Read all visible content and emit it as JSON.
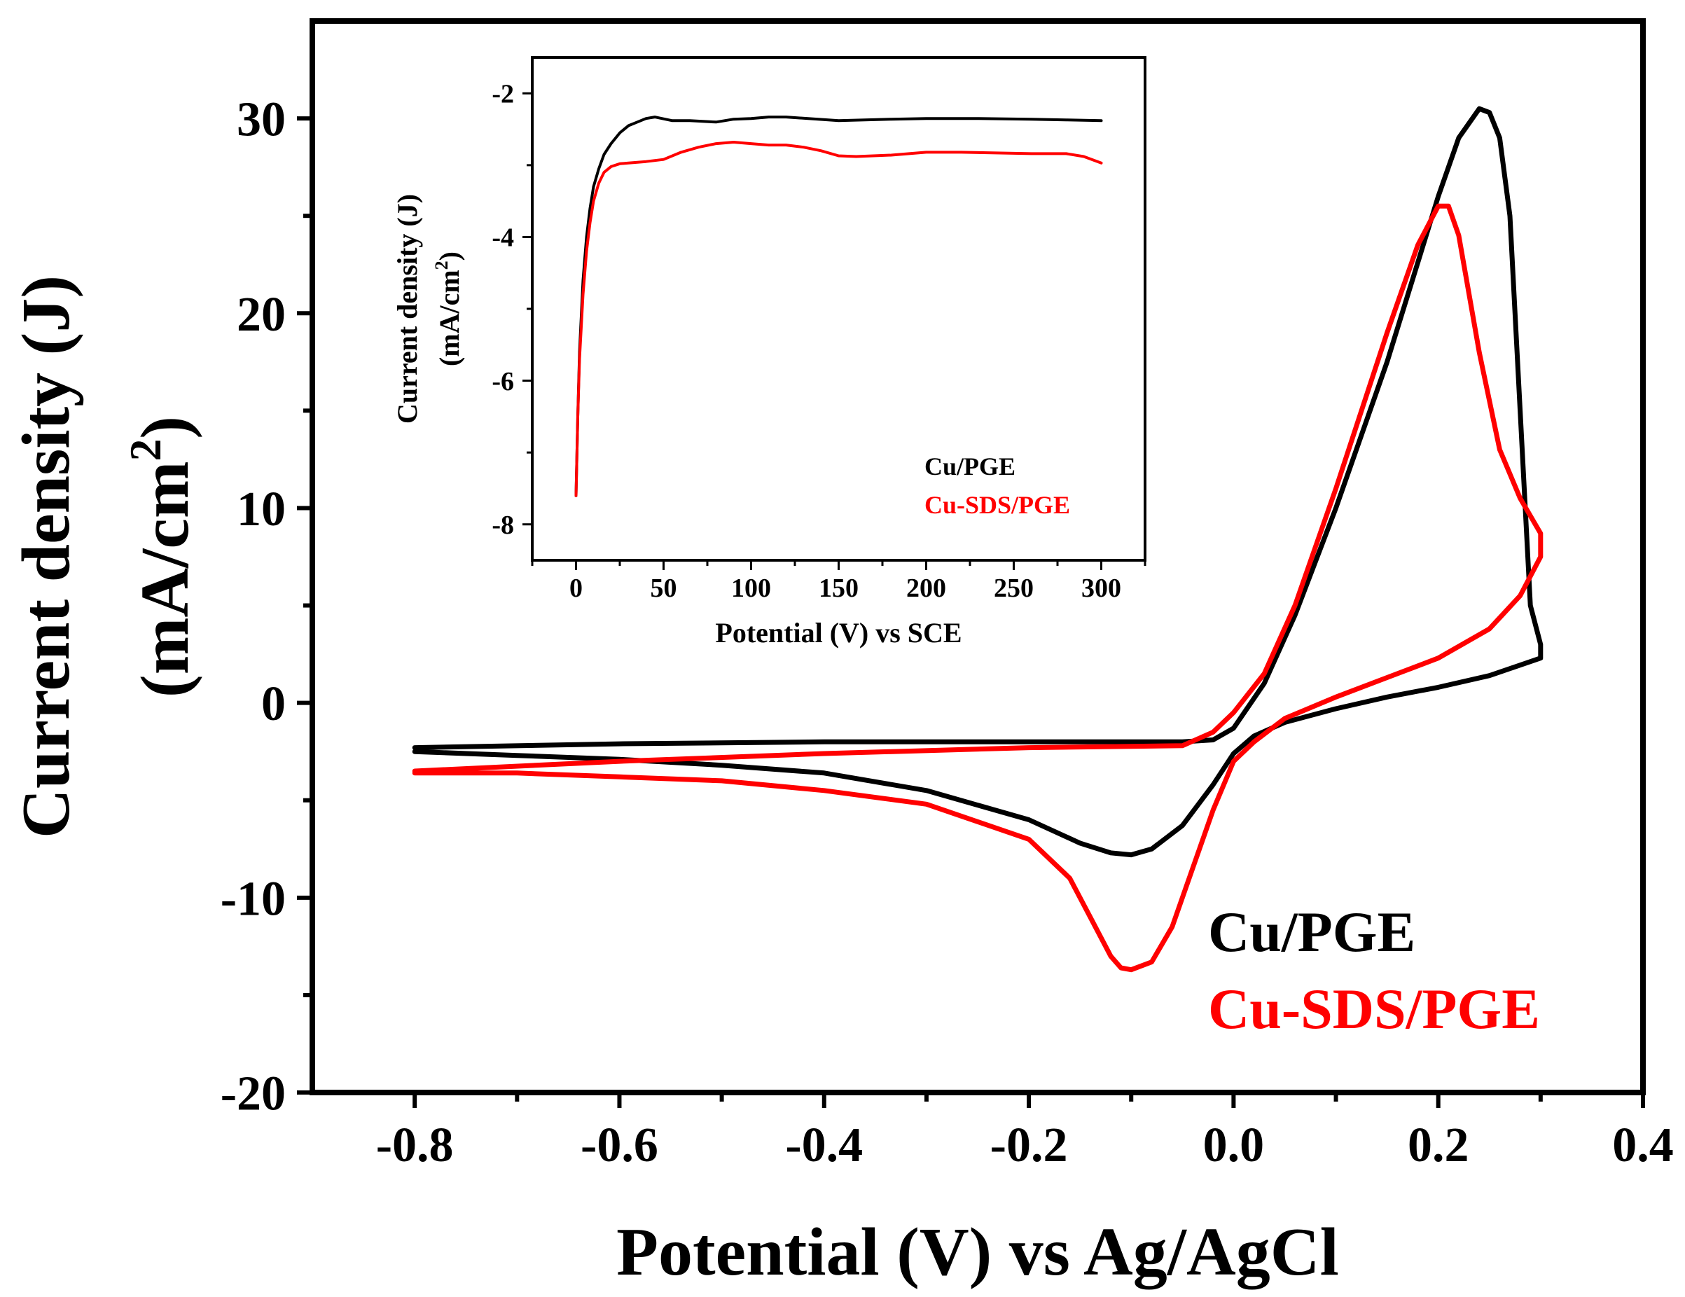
{
  "chart_data": [
    {
      "id": "main",
      "type": "line",
      "title": "",
      "xlabel": "Potential (V) vs Ag/AgCl",
      "ylabel": "Current density (J)",
      "ylabel_unit": "(mA/cm",
      "ylabel_sup": "2",
      "ylabel_close": ")",
      "xlim": [
        -0.9,
        0.4
      ],
      "ylim": [
        -20,
        35
      ],
      "xticks": [
        -0.8,
        -0.6,
        -0.4,
        -0.2,
        0.0,
        0.2,
        0.4
      ],
      "xtick_labels": [
        "-0.8",
        "-0.6",
        "-0.4",
        "-0.2",
        "0.0",
        "0.2",
        "0.4"
      ],
      "xminor": [
        -0.7,
        -0.5,
        -0.3,
        -0.1,
        0.1,
        0.3
      ],
      "yticks": [
        -20,
        -10,
        0,
        10,
        20,
        30
      ],
      "ytick_labels": [
        "-20",
        "-10",
        "0",
        "10",
        "20",
        "30"
      ],
      "yminor": [
        -15,
        -5,
        5,
        15,
        25
      ],
      "grid": false,
      "legend_position": "bottom-right",
      "series": [
        {
          "name": "Cu/PGE",
          "color": "#000000",
          "x": [
            -0.8,
            -0.6,
            -0.4,
            -0.2,
            -0.05,
            -0.02,
            0.0,
            0.03,
            0.06,
            0.1,
            0.15,
            0.2,
            0.22,
            0.24,
            0.25,
            0.26,
            0.27,
            0.28,
            0.29,
            0.3,
            0.3,
            0.25,
            0.2,
            0.15,
            0.1,
            0.05,
            0.02,
            0.0,
            -0.02,
            -0.05,
            -0.08,
            -0.1,
            -0.12,
            -0.15,
            -0.2,
            -0.3,
            -0.4,
            -0.5,
            -0.6,
            -0.7,
            -0.8
          ],
          "y": [
            -2.3,
            -2.1,
            -2.0,
            -2.0,
            -2.0,
            -1.9,
            -1.3,
            1.0,
            4.5,
            10.0,
            17.5,
            26.0,
            29.0,
            30.5,
            30.3,
            29.0,
            25.0,
            15.0,
            5.0,
            3.0,
            2.3,
            1.4,
            0.8,
            0.3,
            -0.3,
            -1.0,
            -1.7,
            -2.6,
            -4.2,
            -6.3,
            -7.5,
            -7.8,
            -7.7,
            -7.2,
            -6.0,
            -4.5,
            -3.6,
            -3.2,
            -2.9,
            -2.7,
            -2.5
          ]
        },
        {
          "name": "Cu-SDS/PGE",
          "color": "#ff0000",
          "x": [
            -0.8,
            -0.6,
            -0.4,
            -0.2,
            -0.05,
            -0.02,
            0.0,
            0.03,
            0.06,
            0.1,
            0.15,
            0.18,
            0.2,
            0.21,
            0.22,
            0.24,
            0.26,
            0.28,
            0.3,
            0.3,
            0.28,
            0.25,
            0.2,
            0.15,
            0.1,
            0.05,
            0.02,
            0.0,
            -0.02,
            -0.04,
            -0.06,
            -0.08,
            -0.1,
            -0.11,
            -0.12,
            -0.14,
            -0.16,
            -0.2,
            -0.3,
            -0.4,
            -0.5,
            -0.6,
            -0.7,
            -0.8
          ],
          "y": [
            -3.5,
            -3.0,
            -2.6,
            -2.3,
            -2.2,
            -1.5,
            -0.5,
            1.5,
            5.0,
            11.0,
            19.0,
            23.5,
            25.5,
            25.5,
            24.0,
            18.0,
            13.0,
            10.5,
            8.7,
            7.5,
            5.5,
            3.8,
            2.3,
            1.3,
            0.3,
            -0.8,
            -2.0,
            -3.0,
            -5.5,
            -8.5,
            -11.5,
            -13.3,
            -13.7,
            -13.6,
            -13.0,
            -11.0,
            -9.0,
            -7.0,
            -5.2,
            -4.5,
            -4.0,
            -3.8,
            -3.6,
            -3.6
          ]
        }
      ]
    },
    {
      "id": "inset",
      "type": "line",
      "title": "",
      "xlabel": "Potential (V) vs SCE",
      "ylabel": "Current density (J)",
      "ylabel_unit": "(mA/cm",
      "ylabel_sup": "2",
      "ylabel_close": ")",
      "xlim": [
        -25,
        325
      ],
      "ylim": [
        -8.5,
        -1.5
      ],
      "xticks": [
        0,
        50,
        100,
        150,
        200,
        250,
        300
      ],
      "xtick_labels": [
        "0",
        "50",
        "100",
        "150",
        "200",
        "250",
        "300"
      ],
      "xminor": [
        -25,
        25,
        75,
        125,
        175,
        225,
        275,
        325
      ],
      "yticks": [
        -8,
        -6,
        -4,
        -2
      ],
      "ytick_labels": [
        "-8",
        "-6",
        "-4",
        "-2"
      ],
      "yminor": [
        -7,
        -5,
        -3
      ],
      "grid": false,
      "legend_position": "bottom-left",
      "series": [
        {
          "name": "Cu/PGE",
          "color": "#000000",
          "x": [
            0,
            1,
            2,
            4,
            6,
            8,
            10,
            13,
            16,
            20,
            25,
            30,
            35,
            40,
            45,
            55,
            65,
            80,
            90,
            100,
            110,
            120,
            150,
            180,
            200,
            230,
            260,
            280,
            300
          ],
          "y": [
            -7.6,
            -6.5,
            -5.6,
            -4.6,
            -4.0,
            -3.6,
            -3.3,
            -3.05,
            -2.85,
            -2.7,
            -2.55,
            -2.45,
            -2.4,
            -2.35,
            -2.33,
            -2.38,
            -2.38,
            -2.4,
            -2.36,
            -2.35,
            -2.33,
            -2.33,
            -2.38,
            -2.36,
            -2.35,
            -2.35,
            -2.36,
            -2.37,
            -2.38
          ]
        },
        {
          "name": "Cu-SDS/PGE",
          "color": "#ff0000",
          "x": [
            0,
            1,
            2,
            4,
            6,
            8,
            10,
            13,
            16,
            20,
            25,
            30,
            40,
            50,
            60,
            70,
            80,
            90,
            100,
            110,
            120,
            130,
            140,
            150,
            160,
            180,
            200,
            220,
            240,
            260,
            280,
            290,
            300
          ],
          "y": [
            -7.6,
            -6.5,
            -5.7,
            -4.8,
            -4.2,
            -3.8,
            -3.5,
            -3.25,
            -3.1,
            -3.02,
            -2.98,
            -2.97,
            -2.95,
            -2.92,
            -2.82,
            -2.75,
            -2.7,
            -2.68,
            -2.7,
            -2.72,
            -2.72,
            -2.75,
            -2.8,
            -2.87,
            -2.88,
            -2.86,
            -2.82,
            -2.82,
            -2.83,
            -2.84,
            -2.84,
            -2.88,
            -2.97
          ]
        }
      ]
    }
  ]
}
